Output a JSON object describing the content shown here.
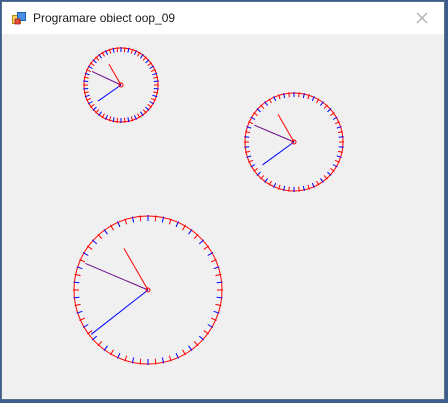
{
  "window": {
    "title": "Programare obiect oop_09",
    "icon": "app-window-icon",
    "close_icon": "close-icon"
  },
  "colors": {
    "tick_red": "#ff0000",
    "tick_blue": "#0000ff",
    "hour_hand": "#ff0000",
    "minute_hand": "#6a0a8a",
    "second_hand": "#0000ff",
    "close_glyph": "#b0b0b0"
  },
  "clocks": [
    {
      "name": "clock-small",
      "hour_deg": -30,
      "minute_deg": -65,
      "second_deg": -125
    },
    {
      "name": "clock-medium",
      "hour_deg": -30,
      "minute_deg": -67,
      "second_deg": -126
    },
    {
      "name": "clock-large",
      "hour_deg": -30,
      "minute_deg": -67,
      "second_deg": -128
    }
  ]
}
